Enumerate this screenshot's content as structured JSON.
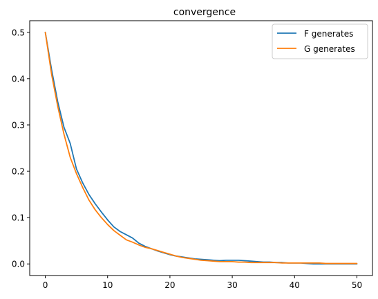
{
  "chart_data": {
    "type": "line",
    "title": "convergence",
    "xlabel": "",
    "ylabel": "",
    "xlim": [
      -2.5,
      52.5
    ],
    "ylim": [
      -0.025,
      0.525
    ],
    "xticks": [
      0,
      10,
      20,
      30,
      40,
      50
    ],
    "yticks": [
      0.0,
      0.1,
      0.2,
      0.3,
      0.4,
      0.5
    ],
    "xtick_labels": [
      "0",
      "10",
      "20",
      "30",
      "40",
      "50"
    ],
    "ytick_labels": [
      "0.0",
      "0.1",
      "0.2",
      "0.3",
      "0.4",
      "0.5"
    ],
    "grid": false,
    "legend_position": "top-right",
    "x": [
      0,
      1,
      2,
      3,
      4,
      5,
      6,
      7,
      8,
      9,
      10,
      11,
      12,
      13,
      14,
      15,
      16,
      17,
      18,
      19,
      20,
      21,
      22,
      23,
      24,
      25,
      26,
      27,
      28,
      29,
      30,
      31,
      32,
      33,
      34,
      35,
      36,
      37,
      38,
      39,
      40,
      41,
      42,
      43,
      44,
      45,
      46,
      47,
      48,
      49,
      50
    ],
    "series": [
      {
        "name": "F generates",
        "color": "#1f77b4",
        "values": [
          0.5,
          0.42,
          0.35,
          0.295,
          0.26,
          0.205,
          0.175,
          0.15,
          0.13,
          0.112,
          0.095,
          0.08,
          0.07,
          0.063,
          0.056,
          0.045,
          0.038,
          0.033,
          0.028,
          0.024,
          0.02,
          0.017,
          0.015,
          0.013,
          0.011,
          0.01,
          0.009,
          0.008,
          0.007,
          0.008,
          0.008,
          0.008,
          0.007,
          0.006,
          0.005,
          0.004,
          0.004,
          0.003,
          0.003,
          0.002,
          0.002,
          0.002,
          0.001,
          0.0,
          0.0,
          0.0,
          0.0,
          0.0,
          0.0,
          0.0,
          0.0
        ]
      },
      {
        "name": "G generates",
        "color": "#ff7f0e",
        "values": [
          0.5,
          0.41,
          0.34,
          0.28,
          0.23,
          0.195,
          0.165,
          0.138,
          0.117,
          0.1,
          0.085,
          0.072,
          0.062,
          0.052,
          0.047,
          0.041,
          0.036,
          0.033,
          0.029,
          0.025,
          0.021,
          0.017,
          0.014,
          0.012,
          0.01,
          0.008,
          0.007,
          0.006,
          0.005,
          0.005,
          0.005,
          0.004,
          0.004,
          0.003,
          0.003,
          0.003,
          0.003,
          0.003,
          0.002,
          0.002,
          0.002,
          0.002,
          0.002,
          0.002,
          0.002,
          0.001,
          0.001,
          0.001,
          0.001,
          0.001,
          0.001
        ]
      }
    ]
  }
}
